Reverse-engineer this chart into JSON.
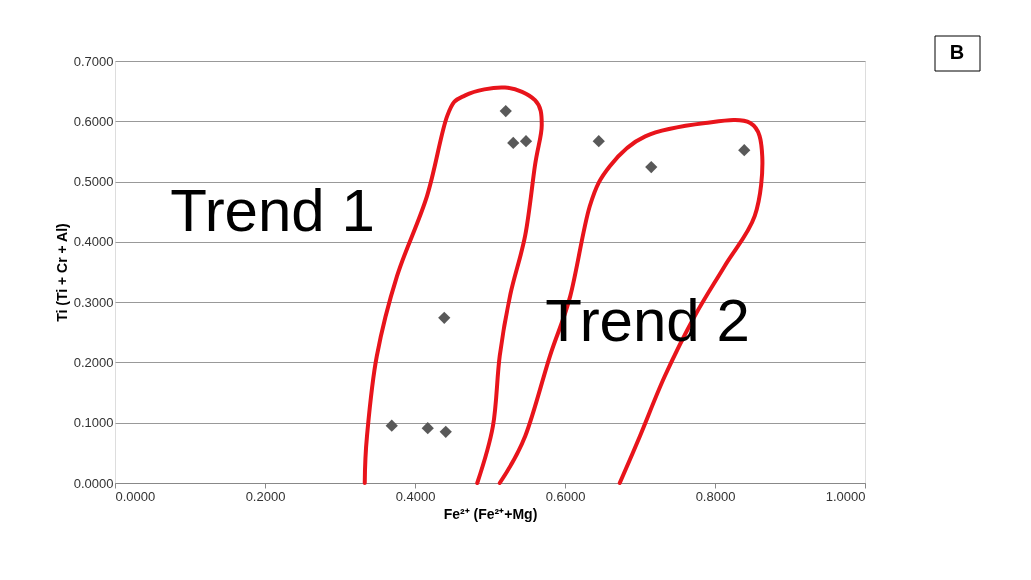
{
  "chart_data": {
    "type": "scatter",
    "xlabel": "Fe²⁺ (Fe²⁺+Mg)",
    "ylabel": "Ti (Ti + Cr + Al)",
    "x": [
      0.369,
      0.417,
      0.441,
      0.439,
      0.521,
      0.531,
      0.548,
      0.645,
      0.715,
      0.839
    ],
    "series": [
      {
        "color": "#595959",
        "marker": "diamond",
        "values": [
          0.095,
          0.091,
          0.085,
          0.274,
          0.617,
          0.564,
          0.567,
          0.567,
          0.524,
          0.552
        ]
      },
      {
        "type": "line",
        "marker": "none",
        "color": "#e8141b",
        "x": [
          0.333,
          0.336,
          0.349,
          0.376,
          0.416,
          0.443,
          0.467,
          0.52,
          0.56,
          0.569,
          0.56,
          0.547,
          0.527,
          0.513,
          0.504,
          0.483
        ],
        "values": [
          0,
          0.078,
          0.21,
          0.343,
          0.476,
          0.609,
          0.643,
          0.656,
          0.635,
          0.594,
          0.527,
          0.411,
          0.312,
          0.211,
          0.095,
          0
        ]
      },
      {
        "type": "line",
        "marker": "none",
        "color": "#e8141b",
        "x": [
          0.513,
          0.547,
          0.58,
          0.607,
          0.633,
          0.66,
          0.707,
          0.787,
          0.847,
          0.863,
          0.853,
          0.813,
          0.773,
          0.733,
          0.7,
          0.673
        ],
        "values": [
          0,
          0.078,
          0.211,
          0.31,
          0.459,
          0.526,
          0.575,
          0.597,
          0.597,
          0.542,
          0.443,
          0.36,
          0.277,
          0.177,
          0.078,
          0
        ]
      }
    ],
    "xlim": [
      0,
      1
    ],
    "xticks": [
      {
        "value": 0,
        "label": "0.0000"
      },
      {
        "value": 0.2,
        "label": "0.2000"
      },
      {
        "value": 0.4,
        "label": "0.4000"
      },
      {
        "value": 0.6,
        "label": "0.6000"
      },
      {
        "value": 0.8,
        "label": "0.8000"
      },
      {
        "value": 1,
        "label": "1.0000"
      }
    ],
    "ylim": [
      0,
      0.7
    ],
    "yticks": [
      {
        "value": 0,
        "label": "0.0000"
      },
      {
        "value": 0.1,
        "label": "0.1000"
      },
      {
        "value": 0.2,
        "label": "0.2000"
      },
      {
        "value": 0.3,
        "label": "0.3000"
      },
      {
        "value": 0.4,
        "label": "0.4000"
      },
      {
        "value": 0.5,
        "label": "0.5000"
      },
      {
        "value": 0.6,
        "label": "0.6000"
      },
      {
        "value": 0.7,
        "label": "0.7000"
      }
    ],
    "grid": "y",
    "annotations": [
      "Trend 1",
      "Trend 2",
      "B"
    ]
  }
}
